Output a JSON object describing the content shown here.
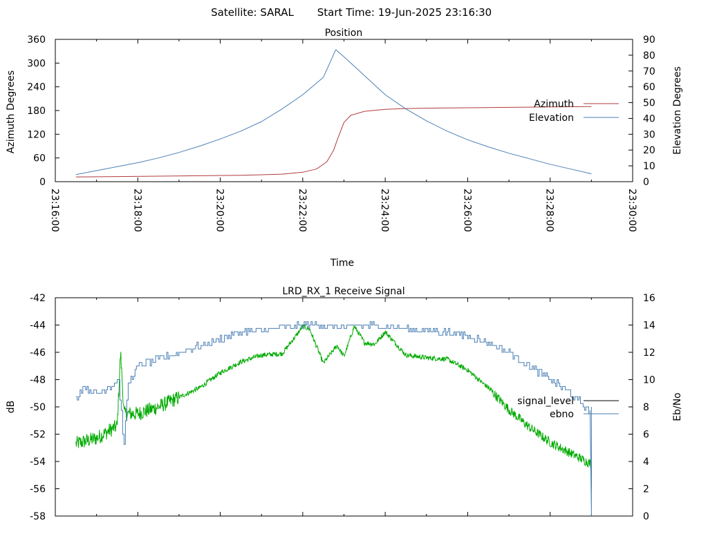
{
  "header": {
    "satellite": "Satellite: SARAL",
    "start_time": "Start Time: 19-Jun-2025 23:16:30"
  },
  "colors": {
    "azimuth": "#b03a3a",
    "elevation": "#4a7fb5",
    "signal_level": "#00aa00",
    "ebno": "#4a7fb5",
    "signal_level_legend": "#000000",
    "frame": "#000000"
  },
  "chart_data": [
    {
      "type": "line",
      "title": "Position",
      "xlabel": "Time",
      "ylabel": "Azimuth Degrees",
      "y2label": "Elevation Degrees",
      "xlim": [
        "23:16:00",
        "23:30:00"
      ],
      "ylim": [
        0,
        360
      ],
      "y2lim": [
        0,
        90
      ],
      "x_ticks": [
        "23:16:00",
        "23:18:00",
        "23:20:00",
        "23:22:00",
        "23:24:00",
        "23:26:00",
        "23:28:00",
        "23:30:00"
      ],
      "y_ticks": [
        "0",
        "60",
        "120",
        "180",
        "240",
        "300",
        "360"
      ],
      "y2_ticks": [
        "0",
        "10",
        "20",
        "30",
        "40",
        "50",
        "60",
        "70",
        "80",
        "90"
      ],
      "grid": false,
      "legend": "right",
      "series": [
        {
          "name": "Azimuth",
          "axis": "y",
          "x": [
            "23:16:30",
            "23:17:30",
            "23:18:30",
            "23:19:30",
            "23:20:30",
            "23:21:30",
            "23:22:00",
            "23:22:20",
            "23:22:35",
            "23:22:45",
            "23:22:50",
            "23:23:00",
            "23:23:10",
            "23:23:30",
            "23:24:00",
            "23:24:30",
            "23:25:00",
            "23:25:30",
            "23:26:00",
            "23:27:00",
            "23:28:00",
            "23:29:00"
          ],
          "values": [
            12,
            13,
            14,
            15,
            16,
            19,
            24,
            32,
            50,
            80,
            105,
            150,
            168,
            178,
            183,
            185,
            186,
            186.5,
            187,
            188,
            189,
            190
          ]
        },
        {
          "name": "Elevation",
          "axis": "y2",
          "x": [
            "23:16:30",
            "23:17:00",
            "23:17:30",
            "23:18:00",
            "23:18:30",
            "23:19:00",
            "23:19:30",
            "23:20:00",
            "23:20:30",
            "23:21:00",
            "23:21:30",
            "23:22:00",
            "23:22:30",
            "23:22:48",
            "23:23:00",
            "23:23:30",
            "23:24:00",
            "23:24:30",
            "23:25:00",
            "23:25:30",
            "23:26:00",
            "23:26:30",
            "23:27:00",
            "23:27:30",
            "23:28:00",
            "23:28:30",
            "23:29:00"
          ],
          "values": [
            4.5,
            7,
            9.5,
            12,
            15,
            18.5,
            22.5,
            27,
            32,
            38,
            46,
            55,
            66,
            83.5,
            79,
            67,
            55,
            46,
            38.5,
            32,
            26.5,
            22,
            18,
            14.5,
            11,
            8,
            5
          ]
        }
      ]
    },
    {
      "type": "line",
      "title": "LRD_RX_1 Receive Signal",
      "xlabel": "",
      "ylabel": "dB",
      "y2label": "Eb/No",
      "xlim": [
        "23:16:00",
        "23:30:00"
      ],
      "ylim": [
        -58,
        -42
      ],
      "y2lim": [
        0,
        16
      ],
      "y_ticks": [
        "-42",
        "-44",
        "-46",
        "-48",
        "-50",
        "-52",
        "-54",
        "-56",
        "-58"
      ],
      "y2_ticks": [
        "0",
        "2",
        "4",
        "6",
        "8",
        "10",
        "12",
        "14",
        "16"
      ],
      "grid": false,
      "legend": "right",
      "series": [
        {
          "name": "signal_level",
          "axis": "y",
          "x": [
            "23:16:30",
            "23:17:00",
            "23:17:30",
            "23:17:35",
            "23:17:40",
            "23:18:00",
            "23:18:30",
            "23:19:00",
            "23:19:30",
            "23:20:00",
            "23:20:30",
            "23:21:00",
            "23:21:30",
            "23:21:50",
            "23:22:00",
            "23:22:10",
            "23:22:30",
            "23:22:50",
            "23:23:00",
            "23:23:15",
            "23:23:30",
            "23:23:45",
            "23:24:00",
            "23:24:30",
            "23:25:00",
            "23:25:30",
            "23:26:00",
            "23:26:30",
            "23:27:00",
            "23:27:30",
            "23:28:00",
            "23:28:30",
            "23:29:00",
            "23:29:00",
            "23:29:00"
          ],
          "values": [
            -52.7,
            -52.3,
            -51.4,
            -46,
            -50.5,
            -50.5,
            -50,
            -49.3,
            -48.6,
            -47.5,
            -46.7,
            -46.2,
            -46.1,
            -44.8,
            -44.1,
            -44.3,
            -46.8,
            -45.5,
            -46.3,
            -44.1,
            -45.3,
            -45.4,
            -44.5,
            -46.2,
            -46.4,
            -46.5,
            -47.3,
            -48.6,
            -50.2,
            -51.5,
            -52.6,
            -53.4,
            -54.2,
            -56,
            -54
          ]
        },
        {
          "name": "ebno",
          "axis": "y2",
          "x": [
            "23:16:30",
            "23:16:40",
            "23:17:00",
            "23:17:20",
            "23:17:32",
            "23:17:40",
            "23:17:45",
            "23:18:00",
            "23:18:30",
            "23:19:00",
            "23:19:30",
            "23:20:00",
            "23:20:30",
            "23:21:00",
            "23:21:30",
            "23:22:00",
            "23:22:30",
            "23:23:00",
            "23:23:30",
            "23:24:00",
            "23:24:30",
            "23:25:00",
            "23:25:30",
            "23:26:00",
            "23:26:30",
            "23:27:00",
            "23:27:30",
            "23:28:00",
            "23:28:30",
            "23:29:00",
            "23:29:00",
            "23:29:00"
          ],
          "values": [
            8.5,
            9.5,
            9,
            9.5,
            10,
            5,
            9.5,
            11,
            11.5,
            12,
            12.5,
            13,
            13.5,
            13.6,
            13.8,
            14,
            14,
            13.8,
            14,
            13.9,
            13.7,
            13.6,
            13.5,
            13.2,
            12.7,
            12,
            11,
            10,
            9,
            7.5,
            0,
            8
          ]
        }
      ]
    }
  ]
}
